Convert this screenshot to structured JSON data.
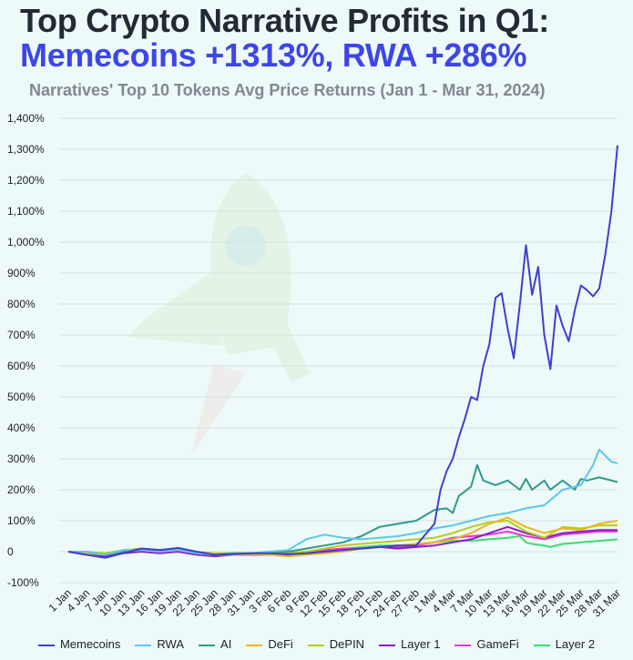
{
  "header": {
    "title_line1": "Top Crypto Narrative Profits in Q1:",
    "title_line2": "Memecoins +1313%, RWA +286%",
    "subtitle": "Narratives' Top 10 Tokens Avg Price Returns (Jan 1 - Mar 31, 2024)"
  },
  "chart_data": {
    "type": "line",
    "title": "Top Crypto Narrative Profits in Q1: Memecoins +1313%, RWA +286%",
    "subtitle": "Narratives' Top 10 Tokens Avg Price Returns (Jan 1 - Mar 31, 2024)",
    "xlabel": "",
    "ylabel": "",
    "ylim": [
      -100,
      1400
    ],
    "yticks": [
      -100,
      0,
      100,
      200,
      300,
      400,
      500,
      600,
      700,
      800,
      900,
      1000,
      1100,
      1200,
      1300,
      1400
    ],
    "ytick_labels": [
      "-100%",
      "0",
      "100%",
      "200%",
      "300%",
      "400%",
      "500%",
      "600%",
      "700%",
      "800%",
      "900%",
      "1,000%",
      "1,100%",
      "1,200%",
      "1,300%",
      "1,400%"
    ],
    "x_tick_labels": [
      "1 Jan",
      "4 Jan",
      "7 Jan",
      "10 Jan",
      "13 Jan",
      "16 Jan",
      "19 Jan",
      "22 Jan",
      "25 Jan",
      "28 Jan",
      "31 Jan",
      "3 Feb",
      "6 Feb",
      "9 Feb",
      "12 Feb",
      "15 Feb",
      "18 Feb",
      "21 Feb",
      "24 Feb",
      "27 Feb",
      "1 Mar",
      "4 Mar",
      "7 Mar",
      "10 Mar",
      "13 Mar",
      "16 Mar",
      "19 Mar",
      "22 Mar",
      "25 Mar",
      "28 Mar",
      "31 Mar"
    ],
    "x_tick_days": [
      1,
      4,
      7,
      10,
      13,
      16,
      19,
      22,
      25,
      28,
      31,
      34,
      37,
      40,
      43,
      46,
      49,
      52,
      55,
      58,
      61,
      64,
      67,
      70,
      73,
      76,
      79,
      82,
      85,
      88,
      91
    ],
    "grid": true,
    "legend_position": "bottom",
    "series": [
      {
        "name": "Memecoins",
        "color": "#3f3fcf",
        "points": [
          [
            1,
            0
          ],
          [
            4,
            -10
          ],
          [
            7,
            -20
          ],
          [
            10,
            -5
          ],
          [
            13,
            10
          ],
          [
            16,
            5
          ],
          [
            19,
            12
          ],
          [
            22,
            0
          ],
          [
            25,
            -10
          ],
          [
            28,
            -8
          ],
          [
            31,
            -5
          ],
          [
            34,
            -5
          ],
          [
            37,
            -8
          ],
          [
            40,
            -5
          ],
          [
            43,
            0
          ],
          [
            46,
            5
          ],
          [
            49,
            10
          ],
          [
            52,
            15
          ],
          [
            55,
            20
          ],
          [
            58,
            20
          ],
          [
            61,
            90
          ],
          [
            62,
            200
          ],
          [
            63,
            260
          ],
          [
            64,
            300
          ],
          [
            65,
            370
          ],
          [
            66,
            430
          ],
          [
            67,
            500
          ],
          [
            68,
            490
          ],
          [
            69,
            600
          ],
          [
            70,
            670
          ],
          [
            71,
            820
          ],
          [
            72,
            835
          ],
          [
            73,
            720
          ],
          [
            74,
            625
          ],
          [
            75,
            800
          ],
          [
            76,
            990
          ],
          [
            77,
            830
          ],
          [
            78,
            920
          ],
          [
            79,
            700
          ],
          [
            80,
            590
          ],
          [
            81,
            795
          ],
          [
            82,
            730
          ],
          [
            83,
            680
          ],
          [
            84,
            780
          ],
          [
            85,
            860
          ],
          [
            86,
            845
          ],
          [
            87,
            825
          ],
          [
            88,
            850
          ],
          [
            89,
            960
          ],
          [
            90,
            1100
          ],
          [
            91,
            1313
          ]
        ]
      },
      {
        "name": "RWA",
        "color": "#5bc8e8",
        "points": [
          [
            1,
            0
          ],
          [
            4,
            0
          ],
          [
            7,
            -10
          ],
          [
            10,
            5
          ],
          [
            13,
            5
          ],
          [
            16,
            0
          ],
          [
            19,
            5
          ],
          [
            22,
            -5
          ],
          [
            25,
            -10
          ],
          [
            28,
            -8
          ],
          [
            31,
            -5
          ],
          [
            34,
            0
          ],
          [
            37,
            5
          ],
          [
            40,
            40
          ],
          [
            43,
            55
          ],
          [
            46,
            45
          ],
          [
            49,
            40
          ],
          [
            52,
            45
          ],
          [
            55,
            50
          ],
          [
            58,
            60
          ],
          [
            61,
            75
          ],
          [
            64,
            85
          ],
          [
            67,
            100
          ],
          [
            70,
            115
          ],
          [
            73,
            125
          ],
          [
            76,
            140
          ],
          [
            79,
            150
          ],
          [
            82,
            200
          ],
          [
            85,
            215
          ],
          [
            87,
            280
          ],
          [
            88,
            330
          ],
          [
            89,
            310
          ],
          [
            90,
            290
          ],
          [
            91,
            286
          ]
        ]
      },
      {
        "name": "AI",
        "color": "#2e9a8a",
        "points": [
          [
            1,
            0
          ],
          [
            4,
            0
          ],
          [
            7,
            -10
          ],
          [
            10,
            0
          ],
          [
            13,
            10
          ],
          [
            16,
            5
          ],
          [
            19,
            5
          ],
          [
            22,
            -5
          ],
          [
            25,
            -10
          ],
          [
            28,
            -5
          ],
          [
            31,
            -5
          ],
          [
            34,
            0
          ],
          [
            37,
            0
          ],
          [
            40,
            10
          ],
          [
            43,
            20
          ],
          [
            46,
            30
          ],
          [
            49,
            50
          ],
          [
            52,
            80
          ],
          [
            55,
            90
          ],
          [
            58,
            100
          ],
          [
            61,
            135
          ],
          [
            63,
            140
          ],
          [
            64,
            125
          ],
          [
            65,
            180
          ],
          [
            67,
            210
          ],
          [
            68,
            280
          ],
          [
            69,
            230
          ],
          [
            71,
            215
          ],
          [
            73,
            230
          ],
          [
            75,
            200
          ],
          [
            76,
            235
          ],
          [
            77,
            200
          ],
          [
            79,
            230
          ],
          [
            80,
            200
          ],
          [
            82,
            230
          ],
          [
            84,
            200
          ],
          [
            85,
            235
          ],
          [
            86,
            230
          ],
          [
            88,
            240
          ],
          [
            91,
            225
          ]
        ]
      },
      {
        "name": "DeFi",
        "color": "#e8b81c",
        "points": [
          [
            1,
            0
          ],
          [
            4,
            -5
          ],
          [
            7,
            -10
          ],
          [
            10,
            0
          ],
          [
            13,
            5
          ],
          [
            16,
            0
          ],
          [
            19,
            5
          ],
          [
            22,
            -5
          ],
          [
            25,
            -10
          ],
          [
            28,
            -10
          ],
          [
            31,
            -8
          ],
          [
            34,
            -10
          ],
          [
            37,
            -15
          ],
          [
            40,
            -10
          ],
          [
            43,
            -5
          ],
          [
            46,
            0
          ],
          [
            49,
            10
          ],
          [
            52,
            15
          ],
          [
            55,
            20
          ],
          [
            58,
            25
          ],
          [
            61,
            30
          ],
          [
            64,
            40
          ],
          [
            67,
            60
          ],
          [
            70,
            90
          ],
          [
            73,
            110
          ],
          [
            76,
            80
          ],
          [
            79,
            60
          ],
          [
            82,
            75
          ],
          [
            85,
            70
          ],
          [
            88,
            90
          ],
          [
            91,
            100
          ]
        ]
      },
      {
        "name": "DePIN",
        "color": "#b8cc1c",
        "points": [
          [
            1,
            0
          ],
          [
            4,
            0
          ],
          [
            7,
            -5
          ],
          [
            10,
            5
          ],
          [
            13,
            10
          ],
          [
            16,
            5
          ],
          [
            19,
            10
          ],
          [
            22,
            0
          ],
          [
            25,
            -5
          ],
          [
            28,
            -5
          ],
          [
            31,
            -5
          ],
          [
            34,
            -5
          ],
          [
            37,
            -5
          ],
          [
            40,
            0
          ],
          [
            43,
            10
          ],
          [
            46,
            20
          ],
          [
            49,
            25
          ],
          [
            52,
            30
          ],
          [
            55,
            35
          ],
          [
            58,
            40
          ],
          [
            61,
            45
          ],
          [
            64,
            60
          ],
          [
            67,
            80
          ],
          [
            70,
            95
          ],
          [
            73,
            100
          ],
          [
            76,
            65
          ],
          [
            79,
            45
          ],
          [
            82,
            80
          ],
          [
            85,
            75
          ],
          [
            88,
            85
          ],
          [
            91,
            85
          ]
        ]
      },
      {
        "name": "Layer 1",
        "color": "#8a1ec8",
        "points": [
          [
            1,
            0
          ],
          [
            4,
            -10
          ],
          [
            7,
            -15
          ],
          [
            10,
            -5
          ],
          [
            13,
            0
          ],
          [
            16,
            -5
          ],
          [
            19,
            0
          ],
          [
            22,
            -10
          ],
          [
            25,
            -15
          ],
          [
            28,
            -10
          ],
          [
            31,
            -10
          ],
          [
            34,
            -10
          ],
          [
            37,
            -10
          ],
          [
            40,
            -5
          ],
          [
            43,
            0
          ],
          [
            46,
            5
          ],
          [
            49,
            10
          ],
          [
            52,
            15
          ],
          [
            55,
            10
          ],
          [
            58,
            15
          ],
          [
            61,
            20
          ],
          [
            64,
            30
          ],
          [
            67,
            40
          ],
          [
            70,
            60
          ],
          [
            73,
            80
          ],
          [
            76,
            60
          ],
          [
            79,
            45
          ],
          [
            82,
            60
          ],
          [
            85,
            65
          ],
          [
            88,
            70
          ],
          [
            91,
            70
          ]
        ]
      },
      {
        "name": "GameFi",
        "color": "#e83ad0",
        "points": [
          [
            1,
            0
          ],
          [
            4,
            -5
          ],
          [
            7,
            -10
          ],
          [
            10,
            0
          ],
          [
            13,
            5
          ],
          [
            16,
            0
          ],
          [
            19,
            0
          ],
          [
            22,
            -5
          ],
          [
            25,
            -10
          ],
          [
            28,
            -8
          ],
          [
            31,
            -5
          ],
          [
            34,
            -5
          ],
          [
            37,
            -5
          ],
          [
            40,
            0
          ],
          [
            43,
            5
          ],
          [
            46,
            10
          ],
          [
            49,
            10
          ],
          [
            52,
            15
          ],
          [
            55,
            15
          ],
          [
            58,
            20
          ],
          [
            61,
            30
          ],
          [
            64,
            45
          ],
          [
            67,
            50
          ],
          [
            70,
            55
          ],
          [
            73,
            65
          ],
          [
            76,
            50
          ],
          [
            79,
            40
          ],
          [
            82,
            55
          ],
          [
            85,
            60
          ],
          [
            88,
            65
          ],
          [
            91,
            65
          ]
        ]
      },
      {
        "name": "Layer 2",
        "color": "#3ddc72",
        "points": [
          [
            1,
            0
          ],
          [
            4,
            -5
          ],
          [
            7,
            -10
          ],
          [
            10,
            0
          ],
          [
            13,
            5
          ],
          [
            16,
            0
          ],
          [
            19,
            5
          ],
          [
            22,
            -5
          ],
          [
            25,
            -10
          ],
          [
            28,
            -8
          ],
          [
            31,
            -5
          ],
          [
            34,
            -5
          ],
          [
            37,
            -5
          ],
          [
            40,
            0
          ],
          [
            43,
            5
          ],
          [
            46,
            10
          ],
          [
            49,
            15
          ],
          [
            52,
            20
          ],
          [
            55,
            20
          ],
          [
            58,
            25
          ],
          [
            61,
            30
          ],
          [
            64,
            35
          ],
          [
            67,
            35
          ],
          [
            70,
            40
          ],
          [
            73,
            45
          ],
          [
            75,
            50
          ],
          [
            76,
            30
          ],
          [
            77,
            25
          ],
          [
            79,
            20
          ],
          [
            80,
            15
          ],
          [
            82,
            25
          ],
          [
            85,
            30
          ],
          [
            88,
            35
          ],
          [
            91,
            40
          ]
        ]
      }
    ]
  }
}
